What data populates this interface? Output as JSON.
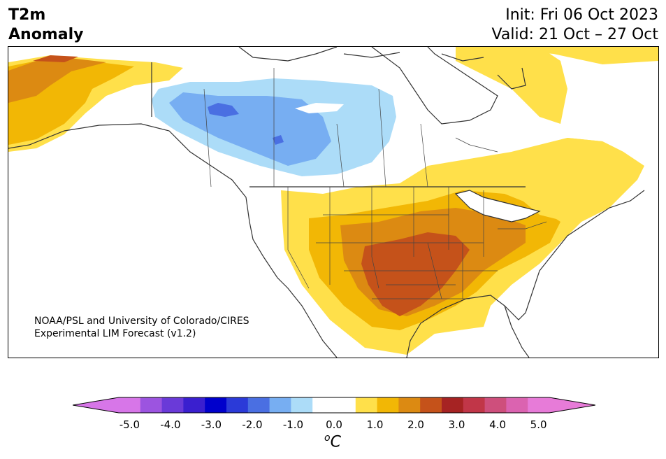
{
  "title": {
    "line1": "T2m",
    "line2": "Anomaly"
  },
  "dates": {
    "init": "Init: Fri 06 Oct 2023",
    "valid": "Valid: 21 Oct – 27 Oct"
  },
  "credit": {
    "line1": "NOAA/PSL and University of Colorado/CIRES",
    "line2": "Experimental LIM Forecast (v1.2)"
  },
  "colorbar": {
    "colors": [
      "#d776e8",
      "#9c54e0",
      "#6a3ad8",
      "#3a1fcf",
      "#0000cc",
      "#2b3ad8",
      "#4a6fe2",
      "#77aef2",
      "#acdcf8",
      "#ffffff",
      "#ffffff",
      "#ffe04a",
      "#f2b705",
      "#dc8a12",
      "#c5521a",
      "#a62323",
      "#c13648",
      "#ce4f7c",
      "#db63b0",
      "#e77bd8"
    ],
    "extend_low": "#d776e8",
    "extend_high": "#e77bd8",
    "tick_labels": [
      "-5.0",
      "-4.0",
      "-3.0",
      "-2.0",
      "-1.0",
      "0.0",
      "1.0",
      "2.0",
      "3.0",
      "4.0",
      "5.0"
    ],
    "unit_sup": "o",
    "unit": "C"
  }
}
